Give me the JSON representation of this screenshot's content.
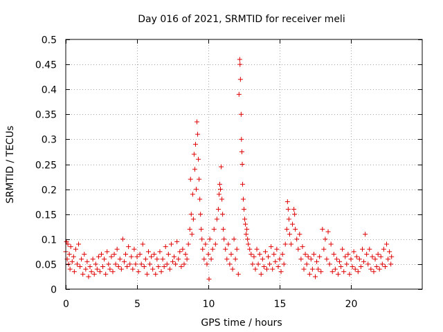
{
  "chart_data": {
    "type": "scatter",
    "title": "Day 016 of 2021, SRMTID for receiver meli",
    "xlabel": "GPS time / hours",
    "ylabel": "SRMTID / TECUs",
    "xlim": [
      0,
      25
    ],
    "ylim": [
      0,
      0.5
    ],
    "xticks": [
      0,
      5,
      10,
      15,
      20
    ],
    "xtick_labels": [
      "0",
      "5",
      "10",
      "15",
      "20"
    ],
    "yticks": [
      0,
      0.05,
      0.1,
      0.15,
      0.2,
      0.25,
      0.3,
      0.35,
      0.4,
      0.45,
      0.5
    ],
    "ytick_labels": [
      "0",
      "0.05",
      "0.1",
      "0.15",
      "0.2",
      "0.25",
      "0.3",
      "0.35",
      "0.4",
      "0.45",
      "0.5"
    ],
    "grid": true,
    "marker": "+",
    "color": "#e00000",
    "series": [
      {
        "name": "SRMTID",
        "points": [
          [
            0.0,
            0.075
          ],
          [
            0.05,
            0.095
          ],
          [
            0.1,
            0.06
          ],
          [
            0.15,
            0.09
          ],
          [
            0.2,
            0.05
          ],
          [
            0.25,
            0.07
          ],
          [
            0.3,
            0.04
          ],
          [
            0.35,
            0.085
          ],
          [
            0.45,
            0.055
          ],
          [
            0.55,
            0.065
          ],
          [
            0.6,
            0.035
          ],
          [
            0.7,
            0.08
          ],
          [
            0.8,
            0.05
          ],
          [
            0.9,
            0.09
          ],
          [
            1.0,
            0.045
          ],
          [
            1.1,
            0.06
          ],
          [
            1.2,
            0.03
          ],
          [
            1.3,
            0.07
          ],
          [
            1.4,
            0.04
          ],
          [
            1.5,
            0.055
          ],
          [
            1.6,
            0.025
          ],
          [
            1.7,
            0.045
          ],
          [
            1.8,
            0.035
          ],
          [
            1.9,
            0.06
          ],
          [
            2.0,
            0.03
          ],
          [
            2.1,
            0.05
          ],
          [
            2.2,
            0.04
          ],
          [
            2.3,
            0.065
          ],
          [
            2.4,
            0.035
          ],
          [
            2.5,
            0.07
          ],
          [
            2.6,
            0.045
          ],
          [
            2.7,
            0.06
          ],
          [
            2.8,
            0.03
          ],
          [
            2.9,
            0.075
          ],
          [
            3.0,
            0.05
          ],
          [
            3.1,
            0.04
          ],
          [
            3.2,
            0.065
          ],
          [
            3.3,
            0.035
          ],
          [
            3.4,
            0.07
          ],
          [
            3.5,
            0.05
          ],
          [
            3.6,
            0.08
          ],
          [
            3.7,
            0.045
          ],
          [
            3.8,
            0.06
          ],
          [
            3.9,
            0.04
          ],
          [
            4.0,
            0.1
          ],
          [
            4.1,
            0.055
          ],
          [
            4.2,
            0.07
          ],
          [
            4.3,
            0.045
          ],
          [
            4.4,
            0.085
          ],
          [
            4.5,
            0.05
          ],
          [
            4.6,
            0.065
          ],
          [
            4.7,
            0.04
          ],
          [
            4.8,
            0.08
          ],
          [
            4.9,
            0.05
          ],
          [
            5.0,
            0.065
          ],
          [
            5.1,
            0.035
          ],
          [
            5.2,
            0.07
          ],
          [
            5.3,
            0.05
          ],
          [
            5.4,
            0.09
          ],
          [
            5.5,
            0.045
          ],
          [
            5.6,
            0.06
          ],
          [
            5.7,
            0.03
          ],
          [
            5.8,
            0.075
          ],
          [
            5.9,
            0.05
          ],
          [
            6.0,
            0.065
          ],
          [
            6.1,
            0.04
          ],
          [
            6.2,
            0.07
          ],
          [
            6.3,
            0.03
          ],
          [
            6.4,
            0.06
          ],
          [
            6.5,
            0.045
          ],
          [
            6.6,
            0.075
          ],
          [
            6.7,
            0.035
          ],
          [
            6.8,
            0.06
          ],
          [
            6.9,
            0.045
          ],
          [
            7.0,
            0.085
          ],
          [
            7.1,
            0.05
          ],
          [
            7.2,
            0.07
          ],
          [
            7.3,
            0.04
          ],
          [
            7.4,
            0.09
          ],
          [
            7.5,
            0.055
          ],
          [
            7.6,
            0.065
          ],
          [
            7.7,
            0.05
          ],
          [
            7.8,
            0.095
          ],
          [
            7.9,
            0.06
          ],
          [
            8.0,
            0.075
          ],
          [
            8.1,
            0.045
          ],
          [
            8.2,
            0.08
          ],
          [
            8.3,
            0.05
          ],
          [
            8.4,
            0.07
          ],
          [
            8.5,
            0.06
          ],
          [
            8.6,
            0.09
          ],
          [
            8.7,
            0.12
          ],
          [
            8.75,
            0.22
          ],
          [
            8.8,
            0.15
          ],
          [
            8.85,
            0.11
          ],
          [
            8.9,
            0.19
          ],
          [
            8.95,
            0.14
          ],
          [
            9.0,
            0.27
          ],
          [
            9.05,
            0.24
          ],
          [
            9.1,
            0.29
          ],
          [
            9.15,
            0.2
          ],
          [
            9.2,
            0.335
          ],
          [
            9.25,
            0.31
          ],
          [
            9.3,
            0.26
          ],
          [
            9.35,
            0.22
          ],
          [
            9.4,
            0.18
          ],
          [
            9.45,
            0.15
          ],
          [
            9.5,
            0.12
          ],
          [
            9.55,
            0.1
          ],
          [
            9.6,
            0.08
          ],
          [
            9.7,
            0.06
          ],
          [
            9.8,
            0.09
          ],
          [
            9.9,
            0.05
          ],
          [
            10.0,
            0.07
          ],
          [
            10.05,
            0.02
          ],
          [
            10.1,
            0.1
          ],
          [
            10.2,
            0.06
          ],
          [
            10.3,
            0.08
          ],
          [
            10.4,
            0.12
          ],
          [
            10.5,
            0.09
          ],
          [
            10.6,
            0.14
          ],
          [
            10.7,
            0.16
          ],
          [
            10.75,
            0.19
          ],
          [
            10.8,
            0.21
          ],
          [
            10.85,
            0.2
          ],
          [
            10.9,
            0.245
          ],
          [
            10.95,
            0.18
          ],
          [
            11.0,
            0.15
          ],
          [
            11.05,
            0.12
          ],
          [
            11.1,
            0.1
          ],
          [
            11.2,
            0.08
          ],
          [
            11.3,
            0.06
          ],
          [
            11.4,
            0.09
          ],
          [
            11.5,
            0.05
          ],
          [
            11.6,
            0.07
          ],
          [
            11.7,
            0.04
          ],
          [
            11.8,
            0.1
          ],
          [
            11.9,
            0.06
          ],
          [
            12.0,
            0.08
          ],
          [
            12.1,
            0.03
          ],
          [
            12.15,
            0.39
          ],
          [
            12.2,
            0.46
          ],
          [
            12.22,
            0.45
          ],
          [
            12.25,
            0.42
          ],
          [
            12.3,
            0.35
          ],
          [
            12.32,
            0.3
          ],
          [
            12.35,
            0.275
          ],
          [
            12.38,
            0.25
          ],
          [
            12.4,
            0.21
          ],
          [
            12.45,
            0.18
          ],
          [
            12.5,
            0.16
          ],
          [
            12.55,
            0.14
          ],
          [
            12.6,
            0.13
          ],
          [
            12.65,
            0.11
          ],
          [
            12.7,
            0.12
          ],
          [
            12.75,
            0.1
          ],
          [
            12.8,
            0.09
          ],
          [
            12.9,
            0.08
          ],
          [
            13.0,
            0.07
          ],
          [
            13.1,
            0.05
          ],
          [
            13.2,
            0.065
          ],
          [
            13.3,
            0.04
          ],
          [
            13.4,
            0.08
          ],
          [
            13.5,
            0.05
          ],
          [
            13.6,
            0.07
          ],
          [
            13.7,
            0.03
          ],
          [
            13.8,
            0.06
          ],
          [
            13.9,
            0.045
          ],
          [
            14.0,
            0.075
          ],
          [
            14.1,
            0.04
          ],
          [
            14.2,
            0.065
          ],
          [
            14.3,
            0.05
          ],
          [
            14.4,
            0.085
          ],
          [
            14.5,
            0.04
          ],
          [
            14.6,
            0.07
          ],
          [
            14.7,
            0.055
          ],
          [
            14.8,
            0.08
          ],
          [
            14.9,
            0.045
          ],
          [
            15.0,
            0.06
          ],
          [
            15.1,
            0.035
          ],
          [
            15.2,
            0.07
          ],
          [
            15.3,
            0.05
          ],
          [
            15.4,
            0.09
          ],
          [
            15.5,
            0.12
          ],
          [
            15.55,
            0.175
          ],
          [
            15.6,
            0.16
          ],
          [
            15.65,
            0.14
          ],
          [
            15.7,
            0.11
          ],
          [
            15.8,
            0.09
          ],
          [
            15.9,
            0.13
          ],
          [
            16.0,
            0.16
          ],
          [
            16.05,
            0.15
          ],
          [
            16.1,
            0.12
          ],
          [
            16.2,
            0.1
          ],
          [
            16.3,
            0.08
          ],
          [
            16.4,
            0.11
          ],
          [
            16.5,
            0.06
          ],
          [
            16.6,
            0.085
          ],
          [
            16.7,
            0.04
          ],
          [
            16.8,
            0.07
          ],
          [
            16.9,
            0.05
          ],
          [
            17.0,
            0.065
          ],
          [
            17.1,
            0.03
          ],
          [
            17.2,
            0.06
          ],
          [
            17.3,
            0.04
          ],
          [
            17.4,
            0.07
          ],
          [
            17.5,
            0.025
          ],
          [
            17.6,
            0.055
          ],
          [
            17.7,
            0.04
          ],
          [
            17.8,
            0.065
          ],
          [
            17.9,
            0.035
          ],
          [
            18.0,
            0.12
          ],
          [
            18.1,
            0.08
          ],
          [
            18.2,
            0.1
          ],
          [
            18.3,
            0.06
          ],
          [
            18.4,
            0.115
          ],
          [
            18.5,
            0.05
          ],
          [
            18.6,
            0.09
          ],
          [
            18.7,
            0.035
          ],
          [
            18.8,
            0.07
          ],
          [
            18.9,
            0.04
          ],
          [
            19.0,
            0.06
          ],
          [
            19.1,
            0.03
          ],
          [
            19.2,
            0.055
          ],
          [
            19.3,
            0.045
          ],
          [
            19.4,
            0.08
          ],
          [
            19.5,
            0.035
          ],
          [
            19.6,
            0.065
          ],
          [
            19.7,
            0.05
          ],
          [
            19.8,
            0.07
          ],
          [
            19.9,
            0.03
          ],
          [
            20.0,
            0.06
          ],
          [
            20.1,
            0.045
          ],
          [
            20.2,
            0.075
          ],
          [
            20.3,
            0.04
          ],
          [
            20.4,
            0.065
          ],
          [
            20.5,
            0.035
          ],
          [
            20.6,
            0.06
          ],
          [
            20.7,
            0.045
          ],
          [
            20.8,
            0.08
          ],
          [
            20.9,
            0.055
          ],
          [
            21.0,
            0.11
          ],
          [
            21.1,
            0.07
          ],
          [
            21.2,
            0.05
          ],
          [
            21.3,
            0.08
          ],
          [
            21.4,
            0.04
          ],
          [
            21.5,
            0.065
          ],
          [
            21.6,
            0.035
          ],
          [
            21.7,
            0.06
          ],
          [
            21.8,
            0.045
          ],
          [
            21.9,
            0.07
          ],
          [
            22.0,
            0.04
          ],
          [
            22.1,
            0.065
          ],
          [
            22.2,
            0.05
          ],
          [
            22.3,
            0.08
          ],
          [
            22.4,
            0.045
          ],
          [
            22.5,
            0.09
          ],
          [
            22.6,
            0.06
          ],
          [
            22.7,
            0.075
          ],
          [
            22.8,
            0.05
          ],
          [
            22.85,
            0.065
          ]
        ]
      }
    ]
  }
}
